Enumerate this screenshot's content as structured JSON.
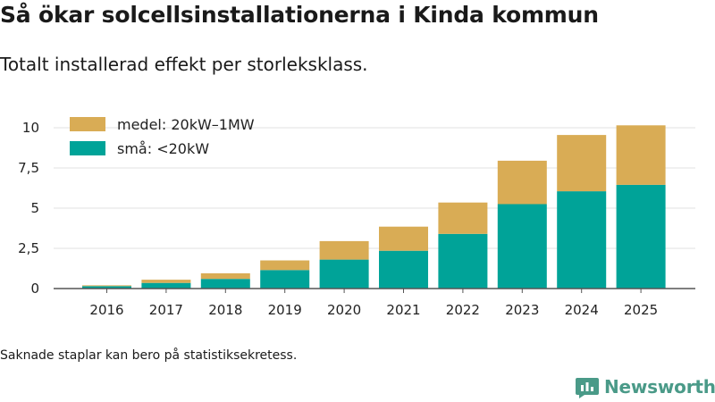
{
  "header": {
    "title": "Så ökar solcellsinstallationerna i Kinda kommun",
    "subtitle": "Totalt installerad effekt per storleksklass."
  },
  "footer": {
    "note": "Saknade staplar kan bero på statistiksekretess.",
    "brand": "Newsworthy"
  },
  "icons": {
    "brand_logo": "newsworthy-bar-chart-icon"
  },
  "colors": {
    "small": "#00a398",
    "medium": "#d9ac55",
    "brand": "#4a9a88",
    "grid": "#e2e2e2",
    "axis": "#555555"
  },
  "chart_data": {
    "type": "bar",
    "stacked": true,
    "categories": [
      "2016",
      "2017",
      "2018",
      "2019",
      "2020",
      "2021",
      "2022",
      "2023",
      "2024",
      "2025"
    ],
    "series": [
      {
        "name": "små: <20kW",
        "values": [
          0.15,
          0.35,
          0.6,
          1.15,
          1.8,
          2.35,
          3.4,
          5.25,
          6.05,
          6.45
        ]
      },
      {
        "name": "medel: 20kW–1MW",
        "values": [
          0.05,
          0.2,
          0.35,
          0.6,
          1.15,
          1.5,
          1.95,
          2.7,
          3.5,
          3.7
        ]
      }
    ],
    "ylim": [
      0,
      10.5
    ],
    "yticks": [
      0,
      2.5,
      5,
      7.5,
      10
    ],
    "ytick_labels": [
      "0",
      "2,5",
      "5",
      "7,5",
      "10"
    ],
    "legend": [
      "medel: 20kW–1MW",
      "små: <20kW"
    ],
    "legend_position": "top-left",
    "title": "Så ökar solcellsinstallationerna i Kinda kommun",
    "xlabel": "",
    "ylabel": ""
  }
}
